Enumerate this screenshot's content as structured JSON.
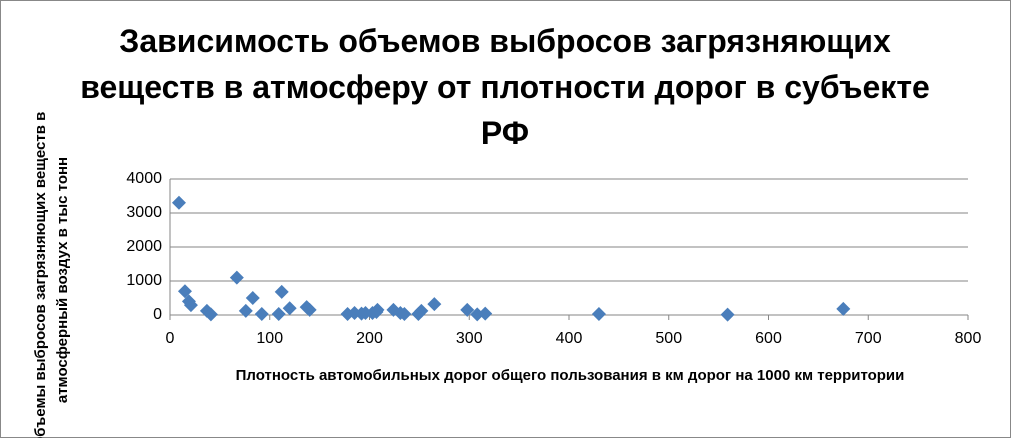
{
  "chart_data": {
    "type": "scatter",
    "title": "Зависимость объемов выбросов загрязняющих веществ в атмосферу от плотности дорог в субъекте РФ",
    "x_label": "Плотность автомобильных дорог общего пользования в км дорог на 1000 км территории",
    "y_label": "Объемы выбросов загрязняющих веществ в атмосферный воздух в тыс тонн",
    "color": "#4a7ebb",
    "x": [
      9,
      15,
      19,
      21,
      37,
      41,
      67,
      76,
      83,
      92,
      109,
      112,
      120,
      137,
      140,
      178,
      185,
      192,
      196,
      203,
      207,
      208,
      224,
      231,
      235,
      249,
      252,
      265,
      298,
      308,
      316,
      430,
      559,
      675
    ],
    "values": [
      3300,
      700,
      400,
      290,
      120,
      20,
      1100,
      120,
      500,
      30,
      30,
      680,
      200,
      230,
      150,
      30,
      60,
      40,
      60,
      60,
      90,
      150,
      150,
      60,
      30,
      30,
      120,
      320,
      150,
      20,
      40,
      30,
      10,
      180
    ],
    "xlim": [
      0,
      800
    ],
    "xticks": [
      0,
      100,
      200,
      300,
      400,
      500,
      600,
      700,
      800
    ],
    "ylim": [
      0,
      4000
    ],
    "yticks": [
      0,
      1000,
      2000,
      3000,
      4000
    ],
    "grid": true
  }
}
